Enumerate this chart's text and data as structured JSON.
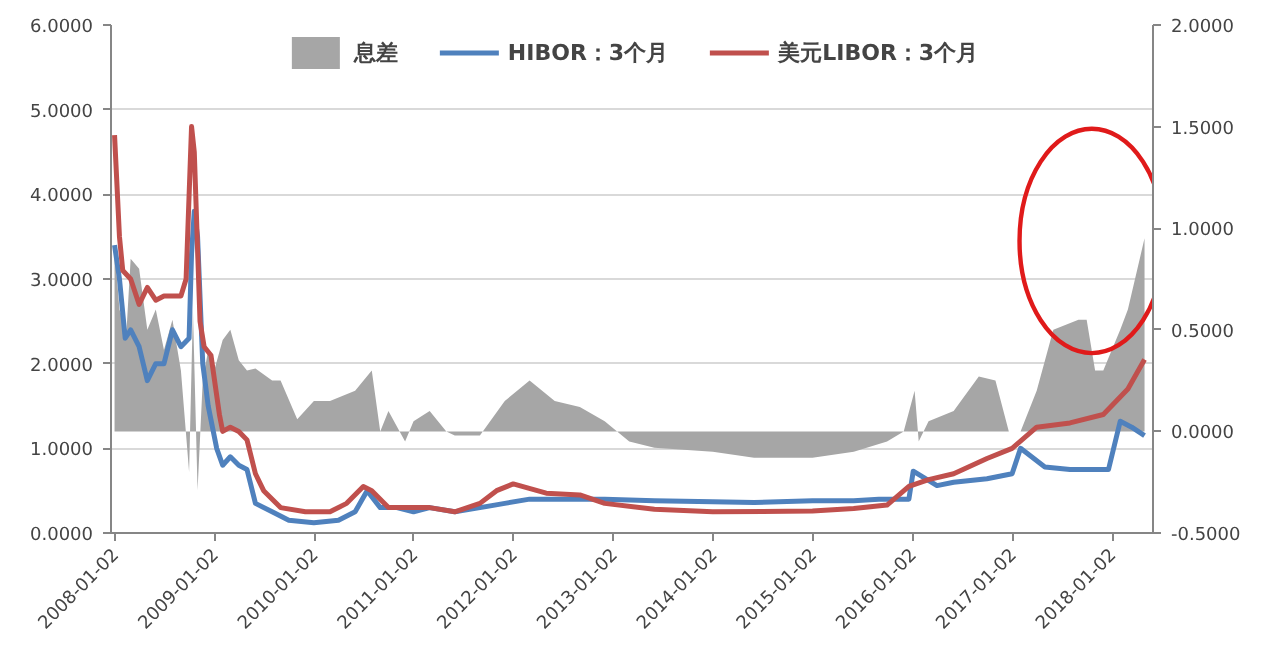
{
  "chart_data": {
    "type": "line",
    "legend": "top",
    "grid": "y",
    "line_style": "solid",
    "marker": "none",
    "xlim": [
      "2007-12-20",
      "2018-06-01"
    ],
    "xticks": [
      "2008-01-02",
      "2009-01-02",
      "2010-01-02",
      "2011-01-02",
      "2012-01-02",
      "2013-01-02",
      "2014-01-02",
      "2015-01-02",
      "2016-01-02",
      "2017-01-02",
      "2018-01-02"
    ],
    "ylim": [
      0,
      6
    ],
    "yticks": [
      {
        "value": 0,
        "label": "0.0000"
      },
      {
        "value": 1,
        "label": "1.0000"
      },
      {
        "value": 2,
        "label": "2.0000"
      },
      {
        "value": 3,
        "label": "3.0000"
      },
      {
        "value": 4,
        "label": "4.0000"
      },
      {
        "value": 5,
        "label": "5.0000"
      },
      {
        "value": 6,
        "label": "6.0000"
      }
    ],
    "y2lim": [
      -0.5,
      2
    ],
    "y2ticks": [
      {
        "value": -0.5,
        "label": "-0.5000"
      },
      {
        "value": 0,
        "label": "0.0000"
      },
      {
        "value": 0.5,
        "label": "0.5000"
      },
      {
        "value": 1,
        "label": "1.0000"
      },
      {
        "value": 1.5,
        "label": "1.5000"
      },
      {
        "value": 2,
        "label": "2.0000"
      }
    ],
    "series": [
      {
        "name": "息差",
        "type": "area",
        "axis": "y2",
        "color": "#a6a6a6",
        "x": [
          "2008-01-02",
          "2008-01-20",
          "2008-02-15",
          "2008-03-01",
          "2008-04-01",
          "2008-05-01",
          "2008-06-01",
          "2008-07-01",
          "2008-08-01",
          "2008-09-01",
          "2008-10-01",
          "2008-10-15",
          "2008-11-01",
          "2008-11-20",
          "2008-12-10",
          "2009-01-01",
          "2009-02-01",
          "2009-03-01",
          "2009-04-01",
          "2009-05-01",
          "2009-06-01",
          "2009-08-01",
          "2009-09-01",
          "2009-11-01",
          "2010-01-01",
          "2010-03-01",
          "2010-06-01",
          "2010-08-01",
          "2010-09-01",
          "2010-10-01",
          "2010-12-01",
          "2011-01-01",
          "2011-03-01",
          "2011-05-01",
          "2011-06-01",
          "2011-09-01",
          "2011-12-01",
          "2012-03-01",
          "2012-06-01",
          "2012-09-01",
          "2012-12-01",
          "2013-03-01",
          "2013-06-01",
          "2014-01-01",
          "2014-06-01",
          "2015-01-01",
          "2015-06-01",
          "2015-10-01",
          "2015-12-01",
          "2016-01-10",
          "2016-01-25",
          "2016-03-01",
          "2016-06-01",
          "2016-09-01",
          "2016-11-01",
          "2016-12-20",
          "2017-02-01",
          "2017-04-01",
          "2017-06-01",
          "2017-09-01",
          "2017-10-01",
          "2017-11-01",
          "2017-12-01",
          "2018-01-01",
          "2018-02-01",
          "2018-03-01",
          "2018-05-01"
        ],
        "values": [
          0.9,
          0.6,
          0.5,
          0.85,
          0.8,
          0.5,
          0.6,
          0.4,
          0.55,
          0.3,
          -0.2,
          0.6,
          -0.29,
          0.25,
          0.4,
          0.3,
          0.45,
          0.5,
          0.35,
          0.3,
          0.31,
          0.25,
          0.25,
          0.06,
          0.15,
          0.15,
          0.2,
          0.3,
          0.0,
          0.1,
          -0.05,
          0.05,
          0.1,
          0.0,
          -0.02,
          -0.02,
          0.15,
          0.25,
          0.15,
          0.12,
          0.05,
          -0.05,
          -0.08,
          -0.1,
          -0.13,
          -0.13,
          -0.1,
          -0.05,
          0.0,
          0.2,
          -0.05,
          0.05,
          0.1,
          0.27,
          0.25,
          0.0,
          0.0,
          0.2,
          0.5,
          0.55,
          0.55,
          0.3,
          0.3,
          0.4,
          0.5,
          0.6,
          0.95
        ]
      },
      {
        "name": "HIBOR：3个月",
        "color": "#4f81bd",
        "x": [
          "2008-01-02",
          "2008-01-20",
          "2008-02-10",
          "2008-03-01",
          "2008-04-01",
          "2008-05-01",
          "2008-06-01",
          "2008-07-01",
          "2008-08-01",
          "2008-09-01",
          "2008-10-01",
          "2008-10-10",
          "2008-10-20",
          "2008-11-01",
          "2008-11-20",
          "2008-12-10",
          "2009-01-10",
          "2009-02-01",
          "2009-03-01",
          "2009-04-01",
          "2009-05-01",
          "2009-06-01",
          "2009-08-01",
          "2009-10-01",
          "2010-01-01",
          "2010-04-01",
          "2010-06-01",
          "2010-07-15",
          "2010-09-01",
          "2010-11-01",
          "2011-01-01",
          "2011-03-01",
          "2011-06-01",
          "2011-09-01",
          "2011-12-01",
          "2012-03-01",
          "2012-06-01",
          "2012-12-01",
          "2013-06-01",
          "2014-01-01",
          "2014-06-01",
          "2015-01-01",
          "2015-06-01",
          "2015-09-01",
          "2015-12-20",
          "2016-01-05",
          "2016-04-01",
          "2016-06-01",
          "2016-10-01",
          "2017-01-01",
          "2017-02-01",
          "2017-05-01",
          "2017-08-01",
          "2017-12-20",
          "2018-02-01",
          "2018-03-15",
          "2018-05-01"
        ],
        "values": [
          3.4,
          3.0,
          2.3,
          2.4,
          2.2,
          1.8,
          2.0,
          2.0,
          2.4,
          2.2,
          2.3,
          3.3,
          3.8,
          3.5,
          2.0,
          1.5,
          1.0,
          0.8,
          0.9,
          0.8,
          0.75,
          0.35,
          0.25,
          0.15,
          0.12,
          0.15,
          0.25,
          0.5,
          0.3,
          0.3,
          0.25,
          0.3,
          0.25,
          0.3,
          0.35,
          0.4,
          0.4,
          0.4,
          0.38,
          0.37,
          0.36,
          0.38,
          0.38,
          0.4,
          0.4,
          0.73,
          0.56,
          0.6,
          0.64,
          0.7,
          1.0,
          0.78,
          0.75,
          0.75,
          1.32,
          1.25,
          1.15
        ]
      },
      {
        "name": "美元LIBOR：3个月",
        "color": "#c0504d",
        "x": [
          "2008-01-02",
          "2008-01-20",
          "2008-02-01",
          "2008-03-01",
          "2008-04-01",
          "2008-05-01",
          "2008-06-01",
          "2008-07-01",
          "2008-09-01",
          "2008-09-20",
          "2008-10-10",
          "2008-10-20",
          "2008-11-10",
          "2008-11-25",
          "2008-12-20",
          "2009-01-20",
          "2009-02-01",
          "2009-03-01",
          "2009-04-01",
          "2009-05-01",
          "2009-06-01",
          "2009-07-01",
          "2009-09-01",
          "2009-12-01",
          "2010-03-01",
          "2010-05-01",
          "2010-07-01",
          "2010-08-01",
          "2010-10-01",
          "2010-12-01",
          "2011-03-01",
          "2011-06-01",
          "2011-09-01",
          "2011-11-01",
          "2012-01-01",
          "2012-05-01",
          "2012-09-01",
          "2012-12-01",
          "2013-06-01",
          "2014-01-01",
          "2015-01-01",
          "2015-06-01",
          "2015-10-01",
          "2015-12-20",
          "2016-03-01",
          "2016-06-01",
          "2016-10-01",
          "2017-01-01",
          "2017-04-01",
          "2017-08-01",
          "2017-12-01",
          "2018-03-01",
          "2018-05-01"
        ],
        "values": [
          4.7,
          3.5,
          3.1,
          3.0,
          2.7,
          2.9,
          2.75,
          2.8,
          2.8,
          3.0,
          4.8,
          4.5,
          2.5,
          2.2,
          2.1,
          1.4,
          1.2,
          1.25,
          1.2,
          1.1,
          0.7,
          0.5,
          0.3,
          0.25,
          0.25,
          0.35,
          0.55,
          0.5,
          0.3,
          0.3,
          0.3,
          0.25,
          0.35,
          0.5,
          0.58,
          0.47,
          0.45,
          0.35,
          0.28,
          0.25,
          0.26,
          0.29,
          0.33,
          0.55,
          0.63,
          0.7,
          0.88,
          1.0,
          1.25,
          1.3,
          1.4,
          1.7,
          2.05
        ]
      }
    ]
  }
}
